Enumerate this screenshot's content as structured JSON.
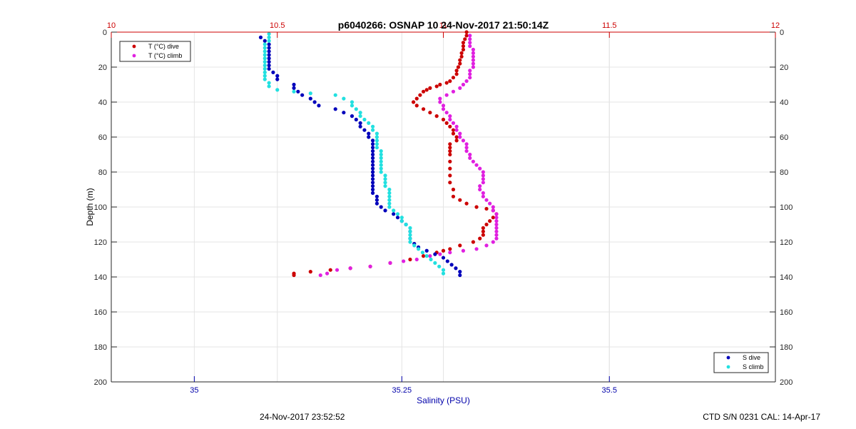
{
  "chart_data": {
    "type": "scatter",
    "title": "p6040266: OSNAP 10 24-Nov-2017 21:50:14Z",
    "ylabel": "Depth (m)",
    "xlabel_bottom": "Salinity (PSU)",
    "depth_axis": {
      "range": [
        0,
        200
      ],
      "reversed": true,
      "ticks": [
        0,
        20,
        40,
        60,
        80,
        100,
        120,
        140,
        160,
        180,
        200
      ]
    },
    "temperature_axis": {
      "position": "top",
      "range": [
        10,
        12
      ],
      "ticks": [
        10,
        10.5,
        11,
        11.5,
        12
      ],
      "tick_labels": [
        "10",
        "10.5",
        "11",
        "11.5",
        "12"
      ],
      "color": "#cc0000"
    },
    "salinity_axis": {
      "position": "bottom",
      "range": [
        34.9,
        35.7
      ],
      "ticks": [
        35,
        35.25,
        35.5
      ],
      "tick_labels": [
        "35",
        "35.25",
        "35.5"
      ],
      "color": "#0000aa"
    },
    "grid": true,
    "legends": [
      {
        "placement": "top-left",
        "entries": [
          {
            "label": "T (°C) dive",
            "color": "#cc0000"
          },
          {
            "label": "T (°C) climb",
            "color": "#e020e0"
          }
        ]
      },
      {
        "placement": "bottom-right",
        "entries": [
          {
            "label": "S dive",
            "color": "#0000bb"
          },
          {
            "label": "S climb",
            "color": "#22e0e0"
          }
        ]
      }
    ],
    "series": [
      {
        "name": "T (°C) dive",
        "axis": "temperature",
        "color": "#cc0000",
        "points": [
          [
            11.07,
            0
          ],
          [
            11.07,
            2
          ],
          [
            11.065,
            4
          ],
          [
            11.06,
            6
          ],
          [
            11.06,
            8
          ],
          [
            11.06,
            10
          ],
          [
            11.055,
            12
          ],
          [
            11.055,
            14
          ],
          [
            11.05,
            16
          ],
          [
            11.05,
            18
          ],
          [
            11.045,
            20
          ],
          [
            11.04,
            22
          ],
          [
            11.04,
            24
          ],
          [
            11.03,
            26
          ],
          [
            11.02,
            28
          ],
          [
            11.01,
            29
          ],
          [
            10.99,
            30
          ],
          [
            10.98,
            31
          ],
          [
            10.96,
            32
          ],
          [
            10.95,
            33
          ],
          [
            10.94,
            34
          ],
          [
            10.93,
            36
          ],
          [
            10.92,
            38
          ],
          [
            10.91,
            40
          ],
          [
            10.92,
            42
          ],
          [
            10.94,
            44
          ],
          [
            10.96,
            46
          ],
          [
            10.98,
            48
          ],
          [
            11.0,
            50
          ],
          [
            11.01,
            52
          ],
          [
            11.02,
            54
          ],
          [
            11.03,
            56
          ],
          [
            11.03,
            58
          ],
          [
            11.04,
            60
          ],
          [
            11.04,
            62
          ],
          [
            11.02,
            64
          ],
          [
            11.02,
            66
          ],
          [
            11.02,
            68
          ],
          [
            11.02,
            70
          ],
          [
            11.02,
            74
          ],
          [
            11.02,
            78
          ],
          [
            11.02,
            82
          ],
          [
            11.02,
            86
          ],
          [
            11.03,
            90
          ],
          [
            11.03,
            94
          ],
          [
            11.05,
            96
          ],
          [
            11.07,
            98
          ],
          [
            11.1,
            100
          ],
          [
            11.13,
            101
          ],
          [
            11.15,
            102
          ],
          [
            11.16,
            104
          ],
          [
            11.15,
            106
          ],
          [
            11.14,
            108
          ],
          [
            11.13,
            110
          ],
          [
            11.12,
            112
          ],
          [
            11.12,
            114
          ],
          [
            11.12,
            116
          ],
          [
            11.11,
            118
          ],
          [
            11.09,
            120
          ],
          [
            11.05,
            122
          ],
          [
            11.02,
            124
          ],
          [
            11.0,
            125
          ],
          [
            10.98,
            126
          ],
          [
            10.94,
            128
          ],
          [
            10.9,
            130
          ],
          [
            10.84,
            132
          ],
          [
            10.78,
            134
          ],
          [
            10.72,
            135
          ],
          [
            10.66,
            136
          ],
          [
            10.6,
            137
          ],
          [
            10.55,
            138
          ],
          [
            10.55,
            139
          ]
        ]
      },
      {
        "name": "T (°C) climb",
        "axis": "temperature",
        "color": "#e020e0",
        "points": [
          [
            10.63,
            139
          ],
          [
            10.65,
            138
          ],
          [
            10.68,
            136
          ],
          [
            10.72,
            135
          ],
          [
            10.78,
            134
          ],
          [
            10.84,
            132
          ],
          [
            10.88,
            131
          ],
          [
            10.92,
            130
          ],
          [
            10.96,
            128
          ],
          [
            10.99,
            127
          ],
          [
            11.02,
            126
          ],
          [
            11.06,
            125
          ],
          [
            11.1,
            124
          ],
          [
            11.13,
            122
          ],
          [
            11.15,
            120
          ],
          [
            11.16,
            118
          ],
          [
            11.16,
            116
          ],
          [
            11.16,
            114
          ],
          [
            11.16,
            112
          ],
          [
            11.16,
            110
          ],
          [
            11.16,
            108
          ],
          [
            11.16,
            106
          ],
          [
            11.16,
            104
          ],
          [
            11.15,
            102
          ],
          [
            11.15,
            100
          ],
          [
            11.14,
            98
          ],
          [
            11.13,
            96
          ],
          [
            11.12,
            94
          ],
          [
            11.12,
            92
          ],
          [
            11.11,
            90
          ],
          [
            11.11,
            88
          ],
          [
            11.12,
            86
          ],
          [
            11.12,
            84
          ],
          [
            11.12,
            82
          ],
          [
            11.12,
            80
          ],
          [
            11.11,
            78
          ],
          [
            11.1,
            76
          ],
          [
            11.09,
            74
          ],
          [
            11.08,
            72
          ],
          [
            11.08,
            70
          ],
          [
            11.07,
            68
          ],
          [
            11.07,
            66
          ],
          [
            11.07,
            64
          ],
          [
            11.06,
            62
          ],
          [
            11.05,
            60
          ],
          [
            11.05,
            58
          ],
          [
            11.04,
            56
          ],
          [
            11.04,
            54
          ],
          [
            11.03,
            52
          ],
          [
            11.02,
            50
          ],
          [
            11.02,
            48
          ],
          [
            11.01,
            46
          ],
          [
            11.0,
            44
          ],
          [
            11.0,
            42
          ],
          [
            10.99,
            40
          ],
          [
            10.99,
            38
          ],
          [
            11.01,
            36
          ],
          [
            11.03,
            34
          ],
          [
            11.05,
            32
          ],
          [
            11.06,
            30
          ],
          [
            11.07,
            28
          ],
          [
            11.08,
            26
          ],
          [
            11.08,
            24
          ],
          [
            11.08,
            22
          ],
          [
            11.09,
            20
          ],
          [
            11.09,
            18
          ],
          [
            11.09,
            16
          ],
          [
            11.09,
            14
          ],
          [
            11.09,
            12
          ],
          [
            11.09,
            10
          ],
          [
            11.08,
            8
          ],
          [
            11.08,
            6
          ],
          [
            11.08,
            4
          ],
          [
            11.08,
            2
          ]
        ]
      },
      {
        "name": "S dive",
        "axis": "salinity",
        "color": "#0000bb",
        "points": [
          [
            35.08,
            3
          ],
          [
            35.085,
            5
          ],
          [
            35.09,
            7
          ],
          [
            35.09,
            9
          ],
          [
            35.09,
            11
          ],
          [
            35.09,
            13
          ],
          [
            35.09,
            15
          ],
          [
            35.09,
            17
          ],
          [
            35.09,
            19
          ],
          [
            35.09,
            21
          ],
          [
            35.095,
            23
          ],
          [
            35.1,
            25
          ],
          [
            35.1,
            27
          ],
          [
            35.12,
            30
          ],
          [
            35.12,
            32
          ],
          [
            35.125,
            34
          ],
          [
            35.13,
            36
          ],
          [
            35.14,
            38
          ],
          [
            35.145,
            40
          ],
          [
            35.15,
            42
          ],
          [
            35.17,
            44
          ],
          [
            35.18,
            46
          ],
          [
            35.19,
            48
          ],
          [
            35.195,
            50
          ],
          [
            35.2,
            52
          ],
          [
            35.2,
            54
          ],
          [
            35.205,
            56
          ],
          [
            35.21,
            58
          ],
          [
            35.21,
            60
          ],
          [
            35.215,
            62
          ],
          [
            35.215,
            64
          ],
          [
            35.215,
            66
          ],
          [
            35.215,
            68
          ],
          [
            35.215,
            70
          ],
          [
            35.215,
            72
          ],
          [
            35.215,
            74
          ],
          [
            35.215,
            76
          ],
          [
            35.215,
            78
          ],
          [
            35.215,
            80
          ],
          [
            35.215,
            82
          ],
          [
            35.215,
            84
          ],
          [
            35.215,
            86
          ],
          [
            35.215,
            88
          ],
          [
            35.215,
            90
          ],
          [
            35.215,
            92
          ],
          [
            35.22,
            94
          ],
          [
            35.22,
            96
          ],
          [
            35.22,
            98
          ],
          [
            35.225,
            100
          ],
          [
            35.23,
            102
          ],
          [
            35.24,
            104
          ],
          [
            35.245,
            106
          ],
          [
            35.25,
            108
          ],
          [
            35.255,
            110
          ],
          [
            35.26,
            114
          ],
          [
            35.26,
            118
          ],
          [
            35.265,
            121
          ],
          [
            35.27,
            123
          ],
          [
            35.28,
            125
          ],
          [
            35.29,
            127
          ],
          [
            35.3,
            129
          ],
          [
            35.305,
            131
          ],
          [
            35.31,
            133
          ],
          [
            35.315,
            135
          ],
          [
            35.32,
            137
          ],
          [
            35.32,
            139
          ]
        ]
      },
      {
        "name": "S climb",
        "axis": "salinity",
        "color": "#22e0e0",
        "points": [
          [
            35.3,
            138
          ],
          [
            35.3,
            136
          ],
          [
            35.295,
            134
          ],
          [
            35.29,
            132
          ],
          [
            35.285,
            130
          ],
          [
            35.28,
            128
          ],
          [
            35.275,
            126
          ],
          [
            35.27,
            124
          ],
          [
            35.265,
            122
          ],
          [
            35.26,
            120
          ],
          [
            35.26,
            118
          ],
          [
            35.26,
            116
          ],
          [
            35.26,
            114
          ],
          [
            35.26,
            112
          ],
          [
            35.255,
            110
          ],
          [
            35.25,
            108
          ],
          [
            35.25,
            106
          ],
          [
            35.245,
            104
          ],
          [
            35.24,
            102
          ],
          [
            35.235,
            100
          ],
          [
            35.235,
            98
          ],
          [
            35.235,
            96
          ],
          [
            35.235,
            94
          ],
          [
            35.235,
            92
          ],
          [
            35.235,
            90
          ],
          [
            35.23,
            88
          ],
          [
            35.23,
            86
          ],
          [
            35.23,
            84
          ],
          [
            35.23,
            82
          ],
          [
            35.225,
            80
          ],
          [
            35.225,
            78
          ],
          [
            35.225,
            76
          ],
          [
            35.225,
            74
          ],
          [
            35.225,
            72
          ],
          [
            35.225,
            70
          ],
          [
            35.225,
            68
          ],
          [
            35.22,
            66
          ],
          [
            35.22,
            64
          ],
          [
            35.22,
            62
          ],
          [
            35.22,
            60
          ],
          [
            35.22,
            58
          ],
          [
            35.215,
            56
          ],
          [
            35.215,
            54
          ],
          [
            35.21,
            52
          ],
          [
            35.205,
            50
          ],
          [
            35.2,
            48
          ],
          [
            35.2,
            46
          ],
          [
            35.195,
            44
          ],
          [
            35.19,
            42
          ],
          [
            35.19,
            40
          ],
          [
            35.18,
            38
          ],
          [
            35.17,
            36
          ],
          [
            35.14,
            35
          ],
          [
            35.12,
            34
          ],
          [
            35.1,
            33
          ],
          [
            35.09,
            31
          ],
          [
            35.09,
            29
          ],
          [
            35.085,
            27
          ],
          [
            35.085,
            25
          ],
          [
            35.085,
            23
          ],
          [
            35.085,
            21
          ],
          [
            35.085,
            19
          ],
          [
            35.085,
            17
          ],
          [
            35.085,
            15
          ],
          [
            35.085,
            13
          ],
          [
            35.085,
            11
          ],
          [
            35.085,
            9
          ],
          [
            35.085,
            7
          ],
          [
            35.09,
            5
          ],
          [
            35.09,
            3
          ],
          [
            35.09,
            1
          ]
        ]
      }
    ]
  },
  "footer": {
    "timestamp": "24-Nov-2017 23:52:52",
    "calibration": "CTD S/N 0231  CAL: 14-Apr-17"
  }
}
